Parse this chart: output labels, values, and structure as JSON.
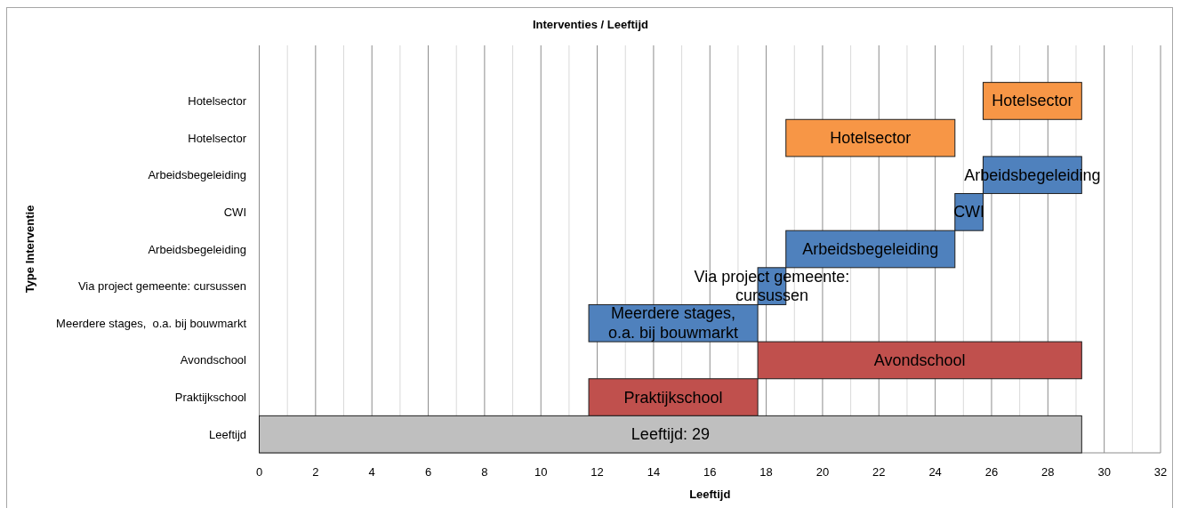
{
  "chart_data": {
    "type": "bar",
    "orientation": "horizontal",
    "title": "Interventies / Leeftijd",
    "xlabel": "Leeftijd",
    "ylabel": "Type Interventie",
    "categories": [
      null,
      "Hotelsector",
      "Hotelsector",
      "Arbeidsbegeleiding",
      "CWI",
      "Arbeidsbegeleiding",
      "Via project gemeente: cursussen",
      "Meerdere stages,  o.a. bij bouwmarkt",
      "Avondschool",
      "Praktijkschool",
      "Leeftijd"
    ],
    "base": [
      null,
      25.7,
      18.7,
      25.7,
      24.7,
      18.7,
      17.7,
      11.7,
      17.7,
      11.7,
      0
    ],
    "values": [
      null,
      3.5,
      6,
      3.5,
      1,
      6,
      1,
      6,
      11.5,
      6,
      29.2
    ],
    "colors": [
      null,
      "#f79646",
      "#f79646",
      "#4f81bd",
      "#4f81bd",
      "#4f81bd",
      "#4f81bd",
      "#4f81bd",
      "#c0504d",
      "#c0504d",
      "#bfbfbf"
    ],
    "value_labels": [
      null,
      "Hotelsector",
      "Hotelsector",
      "Arbeidsbegeleiding",
      "CWI",
      "Arbeidsbegeleiding",
      "Via project gemeente: cursussen",
      "Meerdere stages,  o.a. bij bouwmarkt",
      "Avondschool",
      "Praktijkschool",
      "Leeftijd: 29"
    ],
    "xlim": [
      0,
      32
    ],
    "xticks": [
      0,
      {
        "value": 1,
        "label": null
      },
      2,
      {
        "value": 3,
        "label": null
      },
      4,
      {
        "value": 5,
        "label": null
      },
      6,
      {
        "value": 7,
        "label": null
      },
      8,
      {
        "value": 9,
        "label": null
      },
      10,
      {
        "value": 11,
        "label": null
      },
      12,
      {
        "value": 13,
        "label": null
      },
      14,
      {
        "value": 15,
        "label": null
      },
      16,
      {
        "value": 17,
        "label": null
      },
      18,
      {
        "value": 19,
        "label": null
      },
      20,
      {
        "value": 21,
        "label": null
      },
      22,
      {
        "value": 23,
        "label": null
      },
      24,
      {
        "value": 25,
        "label": null
      },
      26,
      {
        "value": 27,
        "label": null
      },
      28,
      {
        "value": 29,
        "label": null
      },
      30,
      {
        "value": 31,
        "label": null
      },
      32
    ],
    "grid": "x"
  }
}
